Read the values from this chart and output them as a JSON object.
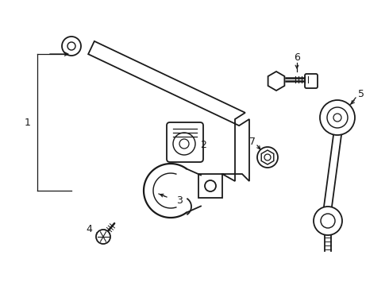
{
  "background_color": "#ffffff",
  "line_color": "#1a1a1a",
  "fig_width": 4.9,
  "fig_height": 3.6,
  "dpi": 100,
  "label_fontsize": 9,
  "lw": 1.3
}
